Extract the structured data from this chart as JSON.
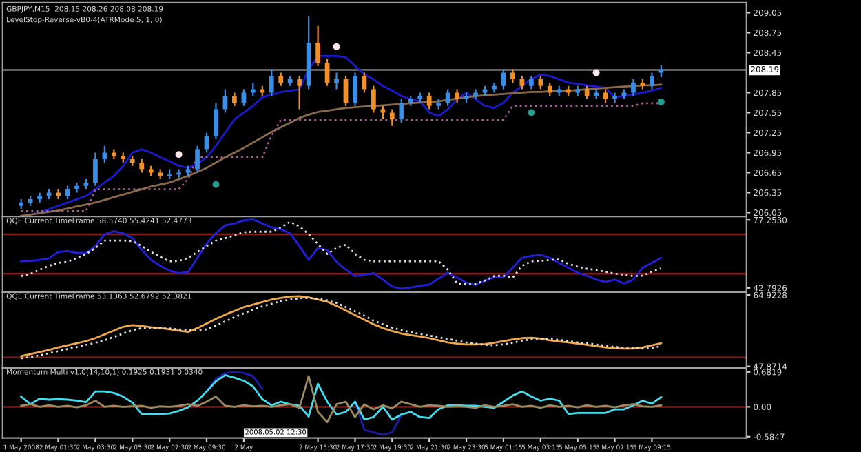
{
  "chart_data": [
    {
      "type": "candlestick",
      "title": "GBPJPY,M15  208.15 208.26 208.08 208.19",
      "subtitle": "LevelStop-Reverse-vB0-4(ATRMode 5, 1, 0)",
      "categories": [
        null,
        null,
        null,
        null,
        null,
        null,
        null,
        null,
        null,
        null,
        null,
        null,
        null,
        null,
        null,
        null,
        null,
        null,
        null,
        null,
        null,
        null,
        null,
        null,
        null,
        null,
        null,
        null,
        null,
        null,
        null,
        null,
        null,
        null,
        null,
        null,
        null,
        null,
        null,
        null,
        null,
        null,
        null,
        null,
        null,
        null,
        null,
        null,
        null,
        null,
        null,
        null,
        null,
        null,
        null,
        null,
        null,
        null,
        null,
        null,
        null,
        null,
        null,
        null,
        null,
        null,
        null,
        null,
        null,
        null
      ],
      "ohlc": [
        [
          206.15,
          206.25,
          206.1,
          206.2
        ],
        [
          206.2,
          206.3,
          206.15,
          206.25
        ],
        [
          206.25,
          206.35,
          206.2,
          206.3
        ],
        [
          206.3,
          206.4,
          206.25,
          206.35
        ],
        [
          206.35,
          206.4,
          206.25,
          206.3
        ],
        [
          206.3,
          206.45,
          206.25,
          206.4
        ],
        [
          206.4,
          206.5,
          206.35,
          206.45
        ],
        [
          206.45,
          206.55,
          206.4,
          206.5
        ],
        [
          206.5,
          206.95,
          206.45,
          206.85
        ],
        [
          206.85,
          207.05,
          206.8,
          206.95
        ],
        [
          206.95,
          207.0,
          206.85,
          206.9
        ],
        [
          206.9,
          206.95,
          206.8,
          206.85
        ],
        [
          206.85,
          206.9,
          206.75,
          206.8
        ],
        [
          206.8,
          206.85,
          206.65,
          206.7
        ],
        [
          206.7,
          206.75,
          206.6,
          206.65
        ],
        [
          206.65,
          206.7,
          206.55,
          206.6
        ],
        [
          206.6,
          206.7,
          206.55,
          206.62
        ],
        [
          206.62,
          206.7,
          206.57,
          206.65
        ],
        [
          206.65,
          206.75,
          206.6,
          206.7
        ],
        [
          206.7,
          207.05,
          206.65,
          207.0
        ],
        [
          207.0,
          207.25,
          206.95,
          207.2
        ],
        [
          207.2,
          207.7,
          207.15,
          207.6
        ],
        [
          207.6,
          207.9,
          207.55,
          207.8
        ],
        [
          207.8,
          207.85,
          207.65,
          207.7
        ],
        [
          207.7,
          207.9,
          207.65,
          207.85
        ],
        [
          207.85,
          208.0,
          207.8,
          207.9
        ],
        [
          207.9,
          207.95,
          207.8,
          207.85
        ],
        [
          207.85,
          208.2,
          207.8,
          208.1
        ],
        [
          208.1,
          208.15,
          207.95,
          208.0
        ],
        [
          208.0,
          208.1,
          207.95,
          208.05
        ],
        [
          208.05,
          208.1,
          207.6,
          207.95
        ],
        [
          207.95,
          209.0,
          207.9,
          208.6
        ],
        [
          208.6,
          208.85,
          208.25,
          208.3
        ],
        [
          208.3,
          208.35,
          207.95,
          208.0
        ],
        [
          208.0,
          208.15,
          207.9,
          208.05
        ],
        [
          208.05,
          208.1,
          207.65,
          207.7
        ],
        [
          207.7,
          208.15,
          207.65,
          208.1
        ],
        [
          208.1,
          208.15,
          207.85,
          207.9
        ],
        [
          207.9,
          207.95,
          207.55,
          207.6
        ],
        [
          207.6,
          207.65,
          207.45,
          207.55
        ],
        [
          207.55,
          207.6,
          207.35,
          207.45
        ],
        [
          207.45,
          207.75,
          207.4,
          207.7
        ],
        [
          207.7,
          207.8,
          207.65,
          207.75
        ],
        [
          207.75,
          207.85,
          207.7,
          207.8
        ],
        [
          207.8,
          207.85,
          207.6,
          207.65
        ],
        [
          207.65,
          207.75,
          207.6,
          207.7
        ],
        [
          207.7,
          207.9,
          207.65,
          207.85
        ],
        [
          207.85,
          207.9,
          207.7,
          207.75
        ],
        [
          207.75,
          207.85,
          207.7,
          207.8
        ],
        [
          207.8,
          207.9,
          207.75,
          207.85
        ],
        [
          207.85,
          207.95,
          207.8,
          207.9
        ],
        [
          207.9,
          208.0,
          207.85,
          207.95
        ],
        [
          207.95,
          208.2,
          207.9,
          208.15
        ],
        [
          208.15,
          208.2,
          208.0,
          208.05
        ],
        [
          208.05,
          208.1,
          207.9,
          207.95
        ],
        [
          207.95,
          208.1,
          207.9,
          208.05
        ],
        [
          208.05,
          208.1,
          207.9,
          207.95
        ],
        [
          207.95,
          208.0,
          207.8,
          207.85
        ],
        [
          207.85,
          207.95,
          207.8,
          207.9
        ],
        [
          207.9,
          207.95,
          207.8,
          207.85
        ],
        [
          207.85,
          207.95,
          207.8,
          207.9
        ],
        [
          207.9,
          207.95,
          207.75,
          207.8
        ],
        [
          207.8,
          207.9,
          207.75,
          207.85
        ],
        [
          207.85,
          207.9,
          207.7,
          207.75
        ],
        [
          207.75,
          207.85,
          207.7,
          207.8
        ],
        [
          207.8,
          207.9,
          207.75,
          207.85
        ],
        [
          207.85,
          208.05,
          207.8,
          208.0
        ],
        [
          208.0,
          208.05,
          207.9,
          207.95
        ],
        [
          207.95,
          208.15,
          207.9,
          208.1
        ],
        [
          208.15,
          208.26,
          208.08,
          208.19
        ]
      ],
      "colors": [
        "#3a8ee6",
        "#3a8ee6",
        "#3a8ee6",
        "#3a8ee6",
        "#f0902a",
        "#3a8ee6",
        "#3a8ee6",
        "#3a8ee6",
        "#3a8ee6",
        "#3a8ee6",
        "#f0902a",
        "#f0902a",
        "#f0902a",
        "#f0902a",
        "#f0902a",
        "#f0902a",
        "#3a8ee6",
        "#3a8ee6",
        "#3a8ee6",
        "#3a8ee6",
        "#3a8ee6",
        "#3a8ee6",
        "#3a8ee6",
        "#f0902a",
        "#3a8ee6",
        "#3a8ee6",
        "#f0902a",
        "#3a8ee6",
        "#f0902a",
        "#3a8ee6",
        "#f0902a",
        "#3a8ee6",
        "#f0902a",
        "#f0902a",
        "#3a8ee6",
        "#f0902a",
        "#3a8ee6",
        "#f0902a",
        "#f0902a",
        "#f0902a",
        "#f0902a",
        "#3a8ee6",
        "#3a8ee6",
        "#3a8ee6",
        "#f0902a",
        "#3a8ee6",
        "#3a8ee6",
        "#f0902a",
        "#3a8ee6",
        "#3a8ee6",
        "#3a8ee6",
        "#3a8ee6",
        "#3a8ee6",
        "#f0902a",
        "#f0902a",
        "#3a8ee6",
        "#f0902a",
        "#f0902a",
        "#3a8ee6",
        "#f0902a",
        "#3a8ee6",
        "#f0902a",
        "#3a8ee6",
        "#f0902a",
        "#3a8ee6",
        "#3a8ee6",
        "#3a8ee6",
        "#f0902a",
        "#3a8ee6",
        "#3a8ee6"
      ],
      "series": [
        {
          "type": "line",
          "color": "#1a1ad0",
          "line_style": "solid",
          "values": [
            206.0,
            206.02,
            206.05,
            206.1,
            206.15,
            206.2,
            206.25,
            206.3,
            206.4,
            206.5,
            206.6,
            206.75,
            206.95,
            207.0,
            206.95,
            206.88,
            206.82,
            206.75,
            206.72,
            206.78,
            206.88,
            207.05,
            207.25,
            207.45,
            207.55,
            207.65,
            207.78,
            207.82,
            207.86,
            207.88,
            207.9,
            208.2,
            208.4,
            208.4,
            208.4,
            208.38,
            208.25,
            208.12,
            208.05,
            207.95,
            207.88,
            207.8,
            207.75,
            207.72,
            207.55,
            207.5,
            207.6,
            207.75,
            207.85,
            207.75,
            207.65,
            207.62,
            207.7,
            207.85,
            207.95,
            208.05,
            208.12,
            208.1,
            208.05,
            208.0,
            207.98,
            207.96,
            207.94,
            207.92,
            207.78,
            207.8,
            207.82,
            207.85,
            207.88,
            207.92
          ]
        },
        {
          "type": "line",
          "color": "#8b6a4a",
          "line_style": "solid",
          "values": [
            206.0,
            206.02,
            206.04,
            206.06,
            206.08,
            206.11,
            206.14,
            206.17,
            206.2,
            206.24,
            206.28,
            206.32,
            206.36,
            206.4,
            206.44,
            206.47,
            206.5,
            206.55,
            206.6,
            206.66,
            206.72,
            206.8,
            206.88,
            206.95,
            207.02,
            207.1,
            207.18,
            207.26,
            207.33,
            207.4,
            207.47,
            207.52,
            207.56,
            207.58,
            207.6,
            207.62,
            207.63,
            207.64,
            207.65,
            207.66,
            207.67,
            207.68,
            207.69,
            207.7,
            207.71,
            207.72,
            207.74,
            207.76,
            207.78,
            207.8,
            207.81,
            207.82,
            207.83,
            207.84,
            207.85,
            207.86,
            207.86,
            207.87,
            207.87,
            207.88,
            207.89,
            207.9,
            207.91,
            207.92,
            207.93,
            207.94,
            207.95,
            207.96,
            207.96,
            207.97
          ]
        },
        {
          "type": "line",
          "color": "#b0609a",
          "line_style": "dotted",
          "values": [
            206.07,
            206.07,
            206.07,
            206.07,
            206.07,
            206.07,
            206.07,
            206.07,
            206.4,
            206.4,
            206.4,
            206.4,
            206.4,
            206.4,
            206.4,
            206.4,
            206.4,
            206.4,
            206.55,
            206.88,
            206.88,
            206.88,
            206.88,
            206.88,
            206.88,
            206.88,
            206.88,
            207.2,
            207.44,
            207.44,
            207.44,
            207.44,
            207.44,
            207.44,
            207.44,
            207.44,
            207.44,
            207.44,
            207.44,
            207.44,
            207.44,
            207.44,
            207.44,
            207.44,
            207.44,
            207.44,
            207.44,
            207.44,
            207.44,
            207.44,
            207.44,
            207.44,
            207.44,
            207.65,
            207.65,
            207.65,
            207.65,
            207.65,
            207.65,
            207.65,
            207.65,
            207.65,
            207.65,
            207.65,
            207.65,
            207.65,
            207.65,
            207.69,
            207.69,
            207.69
          ]
        },
        {
          "type": "scatter",
          "color": "#ffe8f0",
          "marker": "circle",
          "values": [
            null,
            null,
            null,
            null,
            null,
            null,
            null,
            null,
            null,
            null,
            null,
            null,
            null,
            null,
            null,
            null,
            null,
            206.92,
            null,
            null,
            null,
            null,
            null,
            null,
            null,
            null,
            null,
            null,
            null,
            null,
            null,
            null,
            null,
            null,
            208.54,
            null,
            null,
            null,
            null,
            null,
            null,
            null,
            null,
            null,
            null,
            null,
            null,
            null,
            null,
            null,
            null,
            null,
            null,
            null,
            null,
            null,
            null,
            null,
            null,
            null,
            null,
            null,
            208.15,
            null,
            null,
            null,
            null,
            null,
            null,
            null
          ]
        },
        {
          "type": "scatter",
          "color": "#20a090",
          "marker": "circle",
          "values": [
            null,
            null,
            null,
            null,
            null,
            null,
            null,
            null,
            null,
            null,
            null,
            null,
            null,
            null,
            null,
            null,
            null,
            null,
            null,
            null,
            null,
            206.47,
            null,
            null,
            null,
            null,
            null,
            null,
            null,
            null,
            null,
            null,
            null,
            null,
            null,
            null,
            null,
            null,
            null,
            null,
            null,
            null,
            null,
            null,
            null,
            null,
            null,
            null,
            null,
            null,
            null,
            null,
            null,
            null,
            null,
            207.55,
            null,
            null,
            null,
            null,
            null,
            null,
            null,
            null,
            null,
            null,
            null,
            null,
            null,
            207.71
          ]
        }
      ],
      "ylim": [
        205.99,
        209.2
      ],
      "yticks": [
        {
          "value": 209.05,
          "label": "209.05"
        },
        {
          "value": 208.75,
          "label": "208.75"
        },
        {
          "value": 208.45,
          "label": "208.45"
        },
        {
          "value": 207.85,
          "label": "207.85"
        },
        {
          "value": 207.55,
          "label": "207.55"
        },
        {
          "value": 207.25,
          "label": "207.25"
        },
        {
          "value": 206.95,
          "label": "206.95"
        },
        {
          "value": 206.65,
          "label": "206.65"
        },
        {
          "value": 206.35,
          "label": "206.35"
        },
        {
          "value": 206.05,
          "label": "206.05"
        }
      ],
      "ref_lines": [
        {
          "axis": "y",
          "value": 208.19,
          "label": "208.19",
          "color": "#808080"
        }
      ],
      "tick_labels": "y"
    },
    {
      "type": "line",
      "title": "QQE Current TimeFrame 58.5740 55.4241 52.4773",
      "categories": [
        null,
        null,
        null,
        null,
        null,
        null,
        null,
        null,
        null,
        null,
        null,
        null,
        null,
        null,
        null,
        null,
        null,
        null,
        null,
        null,
        null,
        null,
        null,
        null,
        null,
        null,
        null,
        null,
        null,
        null,
        null,
        null,
        null,
        null,
        null,
        null,
        null,
        null,
        null,
        null,
        null,
        null,
        null,
        null,
        null,
        null,
        null,
        null,
        null,
        null,
        null,
        null,
        null,
        null,
        null,
        null,
        null,
        null,
        null,
        null,
        null,
        null,
        null,
        null,
        null,
        null,
        null,
        null,
        null,
        null
      ],
      "series": [
        {
          "color": "#2020e0",
          "line_style": "solid",
          "values": [
            56.3,
            56.5,
            57.0,
            57.8,
            61.0,
            61.5,
            60.5,
            60.5,
            64,
            70,
            71.5,
            70.5,
            68,
            62,
            57,
            54,
            51.5,
            50.3,
            50.8,
            58,
            65.3,
            70.5,
            74.5,
            75.5,
            77,
            77.5,
            75.5,
            73.5,
            72.5,
            70.5,
            64,
            57,
            63,
            62,
            56,
            52,
            48.8,
            49.5,
            50.3,
            47,
            43.5,
            42.3,
            43,
            43.8,
            44.5,
            47.5,
            50.5,
            48,
            45.5,
            44.3,
            46.5,
            48.2,
            48.2,
            53,
            58,
            59,
            59.5,
            58,
            55.5,
            53,
            50.5,
            49,
            47,
            45.8,
            47,
            45,
            47,
            53,
            55.5,
            58
          ]
        },
        {
          "color": "#e0e0e0",
          "line_style": "dotted",
          "values": [
            48.8,
            50,
            52,
            54,
            55.5,
            56,
            58,
            60,
            63,
            66.8,
            66.8,
            66.8,
            66.5,
            64,
            61,
            58.5,
            56.3,
            56.5,
            58,
            61,
            64,
            66.8,
            68,
            69.5,
            71,
            71.3,
            71.3,
            71.3,
            73.5,
            76.3,
            74,
            70,
            65,
            60,
            63,
            64.7,
            60,
            57,
            56.3,
            56.3,
            56.3,
            56.3,
            56.3,
            56.3,
            56.3,
            56.3,
            52,
            44.9,
            44.9,
            44.9,
            46.5,
            48.8,
            49,
            48,
            54,
            56.3,
            56.5,
            57,
            57.2,
            55,
            53.5,
            52.5,
            51.8,
            51,
            50,
            49.5,
            48.8,
            49,
            51,
            52.7
          ]
        }
      ],
      "ylim": [
        40.7,
        79.0
      ],
      "yticks": [
        {
          "value": 77.253,
          "label": "77.2530"
        },
        {
          "value": 42.7926,
          "label": "42.7926"
        }
      ],
      "ref_lines": [
        {
          "axis": "y",
          "value": 70,
          "color": "#8b1a1a"
        },
        {
          "axis": "y",
          "value": 50,
          "color": "#8b1a1a"
        }
      ],
      "tick_labels": "y"
    },
    {
      "type": "line",
      "title": "QQE Current TimeFrame 53.1363 52.6792 52.3821",
      "categories": [
        null,
        null,
        null,
        null,
        null,
        null,
        null,
        null,
        null,
        null,
        null,
        null,
        null,
        null,
        null,
        null,
        null,
        null,
        null,
        null,
        null,
        null,
        null,
        null,
        null,
        null,
        null,
        null,
        null,
        null,
        null,
        null,
        null,
        null,
        null,
        null,
        null,
        null,
        null,
        null,
        null,
        null,
        null,
        null,
        null,
        null,
        null,
        null,
        null,
        null,
        null,
        null,
        null,
        null,
        null,
        null,
        null,
        null,
        null,
        null,
        null,
        null,
        null,
        null,
        null,
        null,
        null,
        null,
        null,
        null
      ],
      "series": [
        {
          "color": "#f0a848",
          "line_style": "solid",
          "values": [
            50.3,
            50.8,
            51.3,
            51.8,
            52.4,
            52.9,
            53.4,
            53.9,
            54.6,
            55.5,
            56.4,
            57.3,
            57.7,
            57.5,
            57.2,
            57.0,
            56.7,
            56.4,
            56.1,
            57.0,
            58.1,
            59.2,
            60.2,
            61.1,
            62.0,
            62.6,
            63.2,
            63.8,
            64.2,
            64.5,
            64.6,
            64.3,
            63.8,
            63.3,
            62.3,
            61.2,
            60.1,
            59.0,
            57.9,
            57.0,
            56.3,
            55.7,
            55.3,
            55.0,
            54.6,
            54.1,
            53.6,
            53.3,
            53.1,
            53.1,
            53.2,
            53.5,
            53.9,
            54.3,
            54.6,
            54.7,
            54.5,
            54.1,
            53.8,
            53.6,
            53.3,
            53.0,
            52.7,
            52.4,
            52.2,
            52.1,
            52.1,
            52.4,
            52.9,
            53.4
          ]
        },
        {
          "color": "#e0e0e0",
          "line_style": "dotted",
          "values": [
            49.8,
            50.1,
            50.5,
            51.0,
            51.5,
            52.0,
            52.5,
            53.0,
            53.5,
            54.1,
            54.9,
            55.7,
            56.5,
            57.0,
            57.1,
            57.0,
            56.9,
            56.7,
            56.5,
            56.4,
            56.7,
            57.6,
            58.6,
            59.6,
            60.5,
            61.4,
            62.2,
            62.8,
            63.4,
            63.8,
            64.1,
            64.2,
            64.0,
            63.6,
            63.0,
            62.0,
            61.0,
            59.9,
            58.8,
            57.9,
            57.1,
            56.5,
            56.0,
            55.6,
            55.2,
            54.8,
            54.4,
            54.0,
            53.6,
            53.3,
            53.0,
            52.9,
            53.1,
            53.5,
            54.0,
            54.3,
            54.5,
            54.4,
            54.2,
            53.9,
            53.6,
            53.4,
            53.1,
            52.8,
            52.5,
            52.3,
            52.2,
            52.1,
            52.3,
            52.7
          ]
        }
      ],
      "ylim": [
        47.5,
        65.6
      ],
      "yticks": [
        {
          "value": 64.9228,
          "label": "64.9228"
        },
        {
          "value": 47.8714,
          "label": "47.8714"
        }
      ],
      "ref_lines": [
        {
          "axis": "y",
          "value": 50,
          "color": "#8b1a1a"
        }
      ],
      "tick_labels": "y"
    },
    {
      "type": "line",
      "title": "Momentum Multi v1.0(14,10,1) 0.1925 0.1931 0.0340",
      "categories": [
        "1 May 2008",
        null,
        null,
        null,
        "2 May 01:30",
        null,
        null,
        null,
        "2 May 03:30",
        null,
        null,
        null,
        "2 May 05:30",
        null,
        null,
        null,
        "2 May 07:30",
        null,
        null,
        null,
        "2 May 09:30",
        null,
        null,
        null,
        "2 May",
        null,
        null,
        null,
        null,
        null,
        null,
        null,
        "2 May 15:30",
        null,
        null,
        null,
        "2 May 17:30",
        null,
        null,
        null,
        "2 May 19:30",
        null,
        null,
        null,
        "2 May 21:30",
        null,
        null,
        null,
        "2 May 23:30",
        null,
        null,
        null,
        "5 May 01:15",
        null,
        null,
        null,
        "5 May 03:15",
        null,
        null,
        null,
        "5 May 05:15",
        null,
        null,
        null,
        "5 May 07:15",
        null,
        null,
        null,
        "5 May 09:15",
        null
      ],
      "series": [
        {
          "color": "#1c1ca8",
          "line_style": "solid",
          "values": [
            null,
            null,
            null,
            null,
            null,
            null,
            null,
            null,
            null,
            null,
            null,
            null,
            null,
            null,
            null,
            null,
            null,
            null,
            null,
            null,
            0.3,
            0.55,
            0.66,
            0.68,
            0.66,
            0.6,
            0.35,
            null,
            null,
            null,
            null,
            null,
            null,
            null,
            null,
            null,
            0.1,
            -0.45,
            -0.5,
            -0.55,
            -0.5,
            -0.15,
            null,
            null,
            null,
            null,
            null,
            null,
            null,
            null,
            null,
            null,
            null,
            null,
            null,
            null,
            null,
            null,
            null,
            null,
            null,
            null,
            null,
            null,
            null,
            null,
            null,
            null,
            null,
            null
          ]
        },
        {
          "color": "#40e0f0",
          "line_style": "solid",
          "values": [
            0.2,
            0.05,
            0.16,
            0.14,
            0.15,
            0.14,
            0.12,
            0.09,
            0.3,
            0.3,
            0.27,
            0.2,
            0.08,
            -0.14,
            -0.14,
            -0.14,
            -0.13,
            -0.08,
            -0.01,
            0.12,
            0.3,
            0.5,
            0.62,
            0.57,
            0.51,
            0.4,
            0.15,
            0.03,
            0.1,
            0.05,
            0.02,
            -0.19,
            0.45,
            0.1,
            -0.15,
            -0.1,
            0.1,
            -0.25,
            -0.2,
            0.0,
            -0.25,
            -0.15,
            -0.1,
            -0.2,
            -0.22,
            -0.05,
            0.03,
            0.03,
            0.02,
            0.02,
            0.0,
            -0.02,
            0.1,
            0.22,
            0.3,
            0.2,
            0.12,
            0.16,
            0.12,
            -0.14,
            -0.12,
            -0.12,
            -0.12,
            -0.12,
            -0.05,
            -0.05,
            0.03,
            0.12,
            0.06,
            0.19
          ]
        },
        {
          "color": "#9c8a60",
          "line_style": "solid",
          "values": [
            0.02,
            0.05,
            0.0,
            0.03,
            0.0,
            0.02,
            -0.01,
            0.03,
            0.12,
            0.0,
            0.02,
            0.0,
            0.01,
            0.02,
            -0.02,
            0.01,
            0.0,
            0.02,
            0.05,
            0.02,
            0.1,
            0.2,
            0.02,
            0.0,
            0.03,
            0.01,
            0.02,
            0.0,
            0.03,
            0.05,
            -0.02,
            0.6,
            -0.1,
            -0.3,
            0.05,
            0.1,
            -0.2,
            0.05,
            -0.05,
            0.03,
            -0.03,
            0.1,
            0.05,
            0.0,
            0.03,
            0.02,
            0.0,
            0.01,
            0.0,
            -0.02,
            0.03,
            0.0,
            0.02,
            0.05,
            0.0,
            0.02,
            -0.02,
            0.03,
            0.0,
            0.02,
            -0.01,
            0.03,
            0.0,
            0.02,
            -0.01,
            0.03,
            0.05,
            0.01,
            0.0,
            0.03
          ]
        }
      ],
      "ylim": [
        -0.61,
        0.76
      ],
      "yticks": [
        {
          "value": 0.6819,
          "label": "0.6819"
        },
        {
          "value": 0,
          "label": "0.00"
        },
        {
          "value": -0.5847,
          "label": "-0.5847"
        }
      ],
      "ref_lines": [
        {
          "axis": "y",
          "value": 0,
          "color": "#8b1a1a"
        }
      ],
      "annotations": [
        "2008.05.02 12:30"
      ]
    }
  ]
}
